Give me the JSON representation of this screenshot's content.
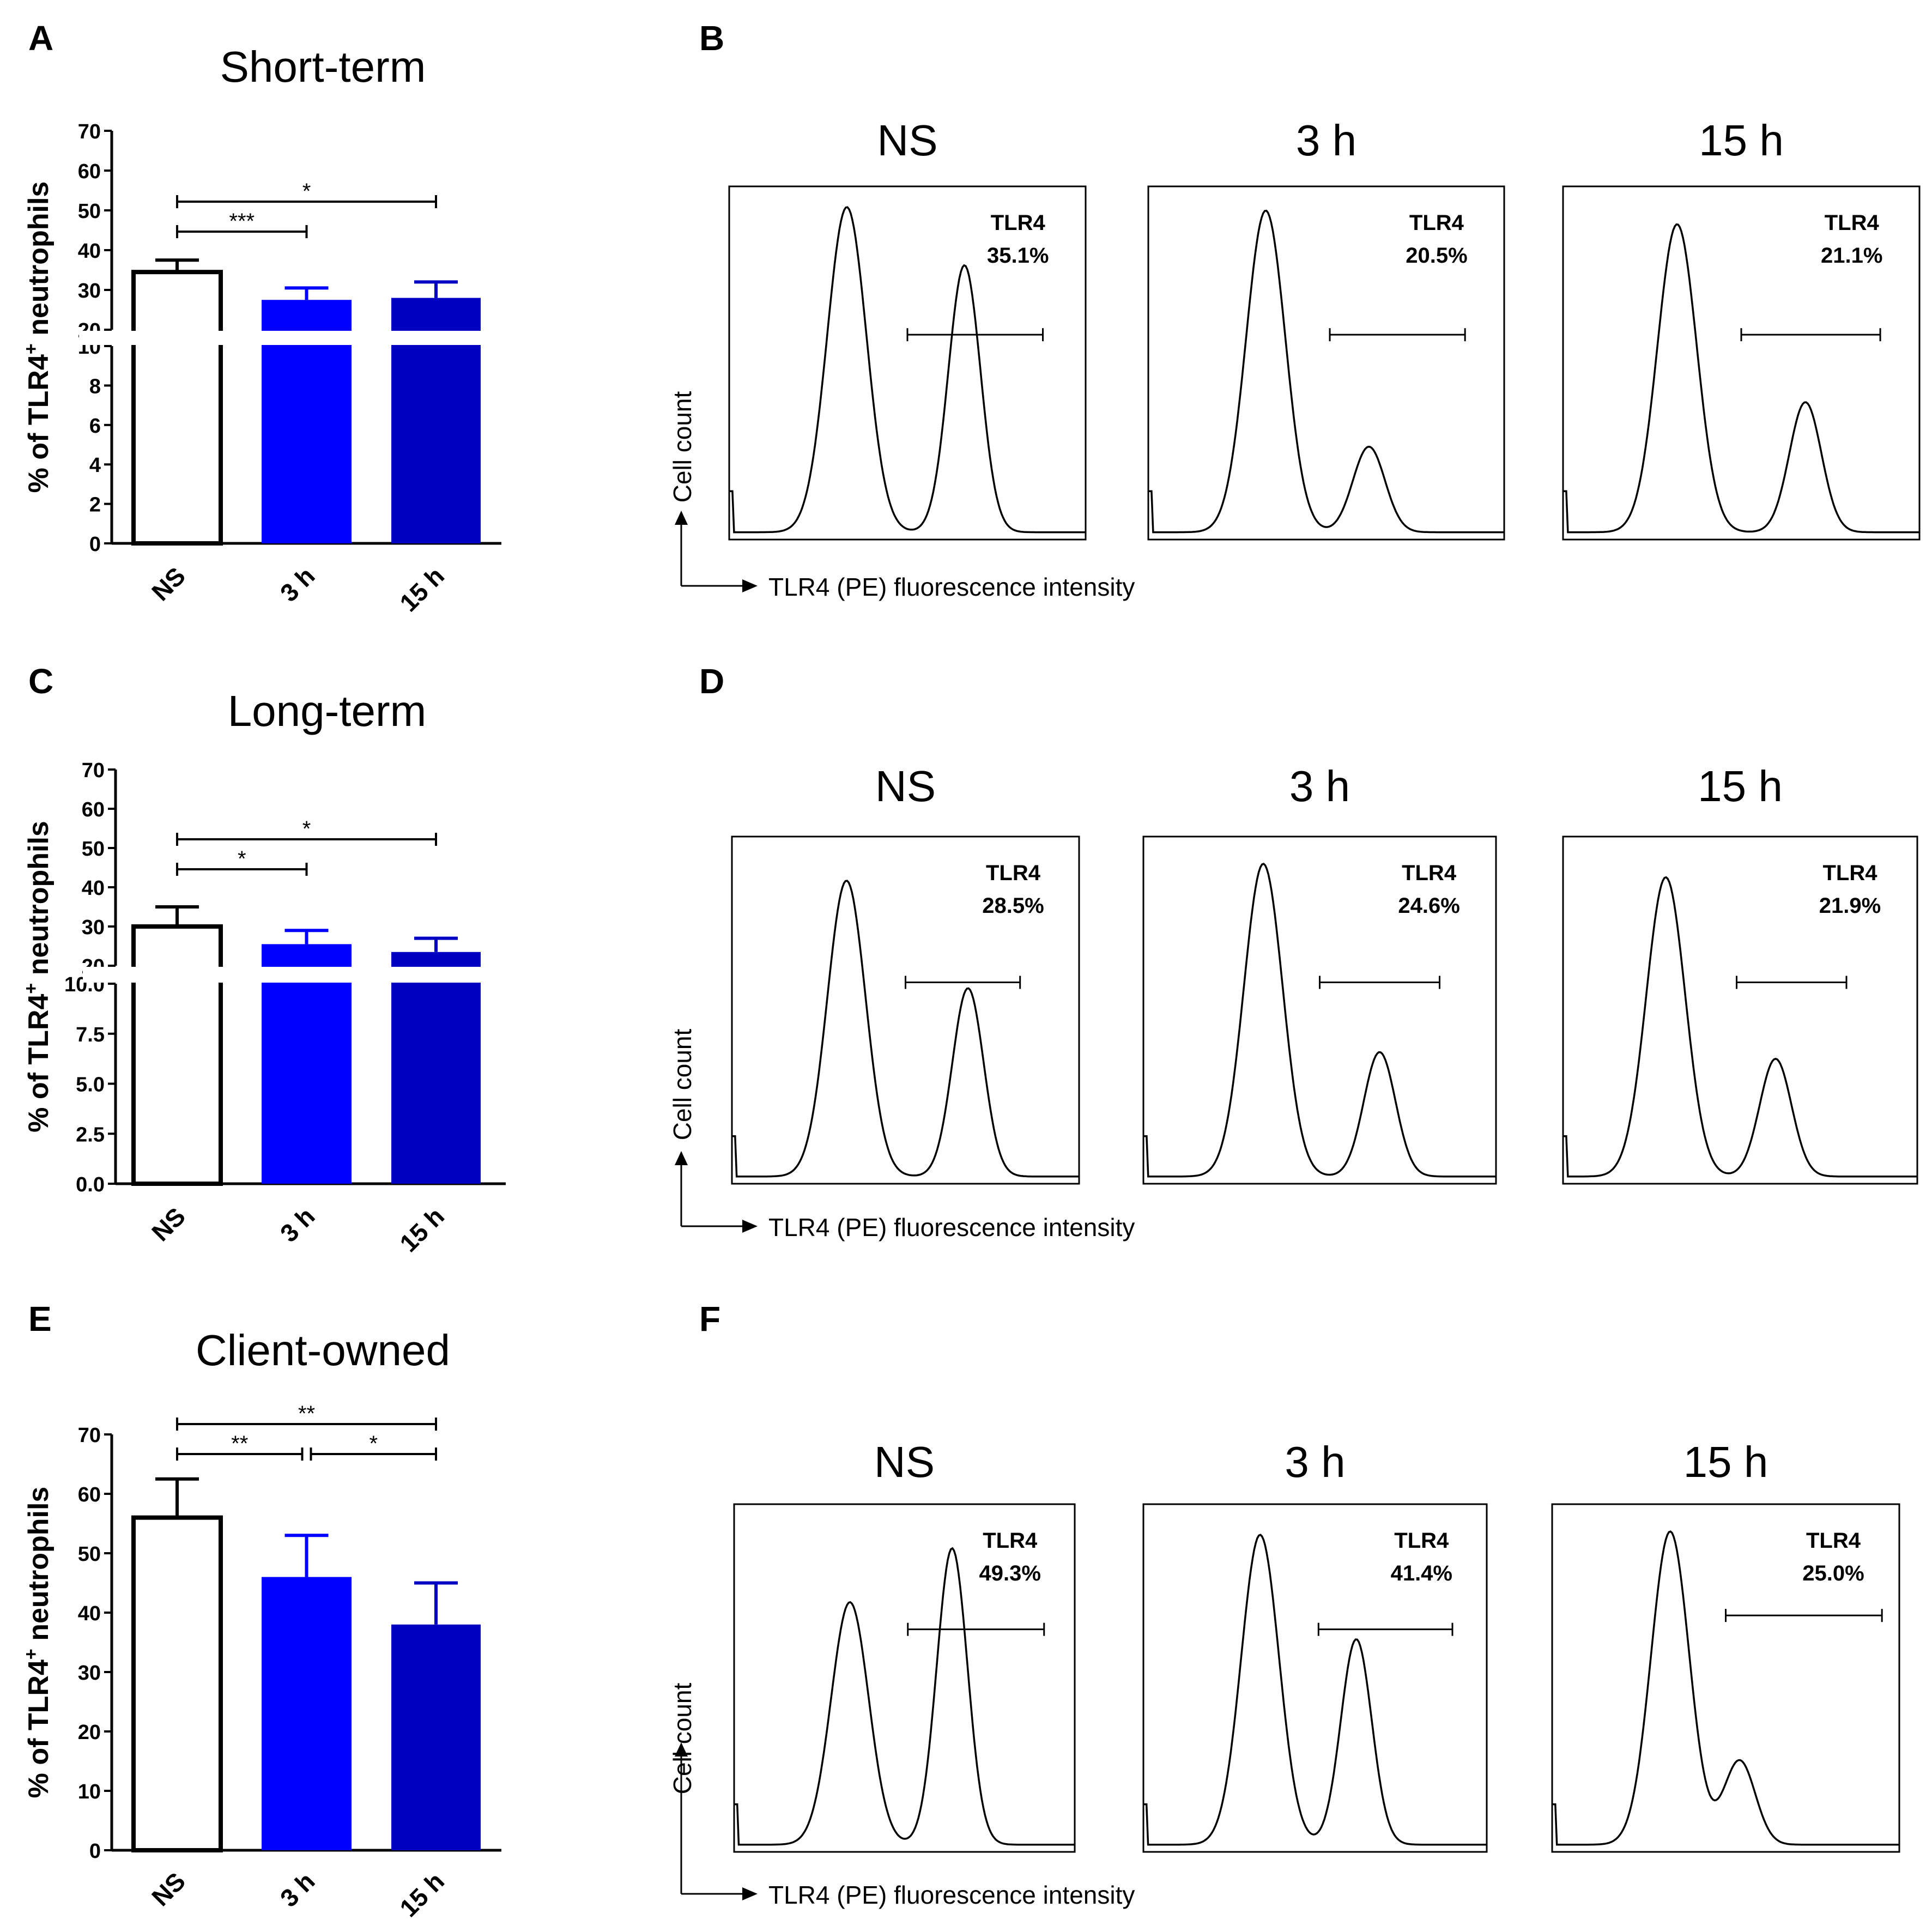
{
  "figure": {
    "panel_letters": [
      "A",
      "B",
      "C",
      "D",
      "E",
      "F"
    ],
    "histogram_xlabel": "TLR4 (PE) fluorescence intensity",
    "histogram_ylabel": "Cell count",
    "bar_ylabel_prefix": "% of TLR4",
    "bar_ylabel_sup": "+",
    "bar_ylabel_suffix": " neutrophils",
    "gate_label": "TLR4"
  },
  "colors": {
    "ns": "#ffffff",
    "h3": "#0000ff",
    "h15": "#0000c2",
    "edge": "#000000"
  },
  "chart_data": [
    {
      "id": "A",
      "type": "bar",
      "title": "Short-term",
      "categories": [
        "NS",
        "3 h",
        "15 h"
      ],
      "values": [
        34.5,
        27.5,
        28.0
      ],
      "errors": [
        3.0,
        3.0,
        4.0
      ],
      "broken_axis": {
        "lower": [
          0,
          10
        ],
        "lower_ticks": [
          "0",
          "2",
          "4",
          "6",
          "8",
          "10"
        ],
        "upper": [
          20,
          70
        ],
        "upper_ticks": [
          "20",
          "30",
          "40",
          "50",
          "60",
          "70"
        ]
      },
      "significance": [
        {
          "from": 0,
          "to": 1,
          "label": "***"
        },
        {
          "from": 0,
          "to": 2,
          "label": "*"
        }
      ]
    },
    {
      "id": "C",
      "type": "bar",
      "title": "Long-term",
      "categories": [
        "NS",
        "3 h",
        "15 h"
      ],
      "values": [
        30.0,
        25.5,
        23.5
      ],
      "errors": [
        5.0,
        3.5,
        3.5
      ],
      "broken_axis": {
        "lower": [
          0,
          10
        ],
        "lower_ticks": [
          "0.0",
          "2.5",
          "5.0",
          "7.5",
          "10.0"
        ],
        "upper": [
          20,
          70
        ],
        "upper_ticks": [
          "20",
          "30",
          "40",
          "50",
          "60",
          "70"
        ]
      },
      "significance": [
        {
          "from": 0,
          "to": 1,
          "label": "*"
        },
        {
          "from": 0,
          "to": 2,
          "label": "*"
        }
      ]
    },
    {
      "id": "E",
      "type": "bar",
      "title": "Client-owned",
      "categories": [
        "NS",
        "3 h",
        "15 h"
      ],
      "values": [
        56.0,
        46.0,
        38.0
      ],
      "errors": [
        6.5,
        7.0,
        7.0
      ],
      "ylim": [
        0,
        70
      ],
      "ticks": [
        "0",
        "10",
        "20",
        "30",
        "40",
        "50",
        "60",
        "70"
      ],
      "significance": [
        {
          "from": 0,
          "to": 1,
          "label": "**"
        },
        {
          "from": 1,
          "to": 2,
          "label": "*"
        },
        {
          "from": 0,
          "to": 2,
          "label": "**"
        }
      ]
    },
    {
      "id": "B",
      "type": "histogram",
      "panels": [
        {
          "title": "NS",
          "tlr4_pct": "35.1%",
          "peak1": [
            0.33,
            0.95
          ],
          "peak2": [
            0.66,
            0.78
          ],
          "gate": [
            0.5,
            0.88
          ]
        },
        {
          "title": "3 h",
          "tlr4_pct": "20.5%",
          "peak1": [
            0.33,
            0.94
          ],
          "peak2": [
            0.62,
            0.25
          ],
          "gate": [
            0.51,
            0.89
          ]
        },
        {
          "title": "15 h",
          "tlr4_pct": "21.1%",
          "peak1": [
            0.32,
            0.9
          ],
          "peak2": [
            0.68,
            0.38
          ],
          "gate": [
            0.5,
            0.89
          ]
        }
      ]
    },
    {
      "id": "D",
      "type": "histogram",
      "panels": [
        {
          "title": "NS",
          "tlr4_pct": "28.5%",
          "peak1": [
            0.33,
            0.88
          ],
          "peak2": [
            0.68,
            0.56
          ],
          "gate": [
            0.5,
            0.83
          ]
        },
        {
          "title": "3 h",
          "tlr4_pct": "24.6%",
          "peak1": [
            0.34,
            0.93
          ],
          "peak2": [
            0.67,
            0.37
          ],
          "gate": [
            0.5,
            0.84
          ]
        },
        {
          "title": "15 h",
          "tlr4_pct": "21.9%",
          "peak1": [
            0.29,
            0.89
          ],
          "peak2": [
            0.6,
            0.35
          ],
          "gate": [
            0.49,
            0.8
          ]
        }
      ]
    },
    {
      "id": "F",
      "type": "histogram",
      "panels": [
        {
          "title": "NS",
          "tlr4_pct": "49.3%",
          "peak1": [
            0.34,
            0.72
          ],
          "peak2": [
            0.64,
            0.88
          ],
          "gate": [
            0.51,
            0.91
          ]
        },
        {
          "title": "3 h",
          "tlr4_pct": "41.4%",
          "peak1": [
            0.34,
            0.92
          ],
          "peak2": [
            0.62,
            0.61
          ],
          "gate": [
            0.51,
            0.9
          ]
        },
        {
          "title": "15 h",
          "tlr4_pct": "25.0%",
          "peak1": [
            0.34,
            0.93
          ],
          "peak2": [
            0.54,
            0.25
          ],
          "gate": [
            0.5,
            0.95
          ]
        }
      ]
    }
  ]
}
